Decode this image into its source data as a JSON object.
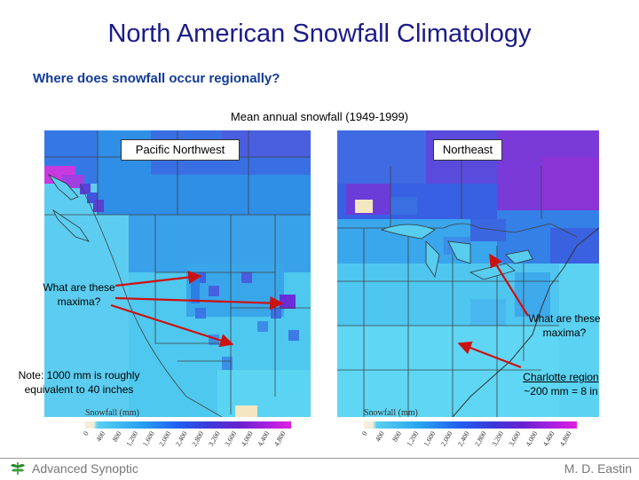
{
  "title": "North American Snowfall Climatology",
  "subtitle": "Where does snowfall occur regionally?",
  "map_title": "Mean annual snowfall (1949-1999)",
  "left_map": {
    "label": "Pacific Northwest",
    "legend_title": "Snowfall (mm)",
    "legend_ticks": [
      "0",
      "400",
      "800",
      "1,200",
      "1,600",
      "2,000",
      "2,400",
      "2,800",
      "3,200",
      "3,600",
      "4,000",
      "4,400",
      "4,800"
    ]
  },
  "right_map": {
    "label": "Northeast",
    "legend_title": "Snowfall (mm)",
    "legend_ticks": [
      "0",
      "400",
      "800",
      "1,200",
      "1,600",
      "2,000",
      "2,400",
      "2,800",
      "3,200",
      "3,600",
      "4,000",
      "4,400",
      "4,800"
    ]
  },
  "question_left": [
    "What are these",
    "maxima?"
  ],
  "question_right": [
    "What are these",
    "maxima?"
  ],
  "note": [
    "Note: 1000 mm is roughly",
    "equivalent to 40 inches"
  ],
  "charlotte": [
    "Charlotte region",
    "~200 mm = 8 in"
  ],
  "footer": {
    "left": "Advanced Synoptic",
    "right": "M. D. Eastin"
  },
  "colors": {
    "title": "#1b1b8a",
    "subtitle": "#123a9a",
    "arrow": "#cc1111",
    "snow_low": "#5ad0f0",
    "snow_mid": "#2060f0",
    "snow_high": "#8a00d8"
  }
}
